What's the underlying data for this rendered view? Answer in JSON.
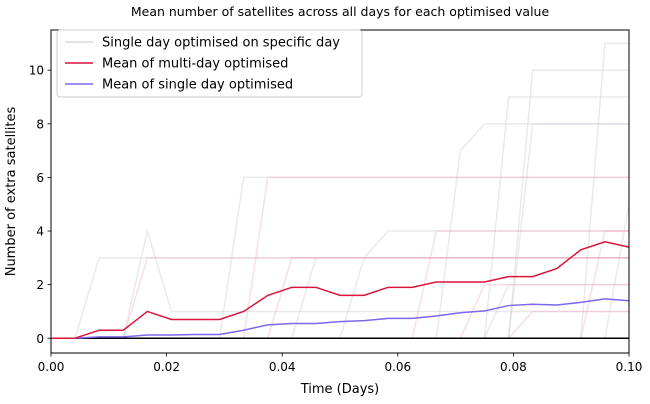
{
  "chart_data": {
    "type": "line",
    "title": "Mean number of satellites across all days for each optimised value",
    "xlabel": "Time (Days)",
    "ylabel": "Number of extra satellites",
    "xlim": [
      0.0,
      0.1
    ],
    "ylim": [
      -0.55,
      11.5
    ],
    "x_ticks": [
      0.0,
      0.02,
      0.04,
      0.06,
      0.08,
      0.1
    ],
    "x_tick_labels": [
      "0.00",
      "0.02",
      "0.04",
      "0.06",
      "0.08",
      "0.10"
    ],
    "y_ticks": [
      0,
      2,
      4,
      6,
      8,
      10
    ],
    "y_tick_labels": [
      "0",
      "2",
      "4",
      "6",
      "8",
      "10"
    ],
    "grid": false,
    "legend_position": "top-left",
    "colors": {
      "single_day": "#c8c8d2",
      "multi_day_mean": "#dc143c",
      "single_day_mean": "#7b68ee",
      "pink_faint": "#f4a6b6",
      "zero_line": "#000000"
    },
    "x": [
      0.0,
      0.004167,
      0.008333,
      0.0125,
      0.016667,
      0.020833,
      0.025,
      0.029167,
      0.033333,
      0.0375,
      0.041667,
      0.045833,
      0.05,
      0.054167,
      0.058333,
      0.0625,
      0.066667,
      0.070833,
      0.075,
      0.079167,
      0.083333,
      0.0875,
      0.091667,
      0.095833,
      0.1
    ],
    "series": [
      {
        "name": "Mean of multi-day optimised",
        "role": "mean_multi",
        "values": [
          0.0,
          0.0,
          0.3,
          0.3,
          1.0,
          0.7,
          0.7,
          0.7,
          1.0,
          1.6,
          1.9,
          1.9,
          1.6,
          1.6,
          1.9,
          1.9,
          2.1,
          2.1,
          2.1,
          2.3,
          2.3,
          2.6,
          3.3,
          3.6,
          3.4
        ]
      },
      {
        "name": "Mean of single day optimised",
        "role": "mean_single",
        "values": [
          0.0,
          0.0,
          0.05,
          0.05,
          0.12,
          0.12,
          0.14,
          0.14,
          0.3,
          0.5,
          0.55,
          0.55,
          0.62,
          0.66,
          0.74,
          0.74,
          0.83,
          0.95,
          1.02,
          1.22,
          1.27,
          1.24,
          1.34,
          1.47,
          1.4
        ]
      }
    ],
    "background_series": [
      {
        "name": "Single day optimised on specific day",
        "values": [
          0,
          0,
          0,
          0,
          0,
          0,
          0,
          0,
          0,
          0,
          0,
          0,
          0,
          0,
          0,
          0,
          0,
          0,
          0,
          0,
          0,
          0,
          0,
          0,
          0
        ]
      },
      {
        "values": [
          0,
          0,
          0,
          0,
          0,
          0,
          0,
          0,
          6,
          6,
          6,
          6,
          6,
          6,
          6,
          6,
          6,
          6,
          6,
          6,
          6,
          6,
          6,
          6,
          6
        ]
      },
      {
        "values": [
          0,
          0,
          0,
          0,
          0,
          0,
          0,
          0,
          0,
          0,
          0,
          0,
          0,
          3,
          3,
          3,
          3,
          3,
          3,
          3,
          3,
          3,
          3,
          3,
          3
        ]
      },
      {
        "values": [
          0,
          0,
          0,
          0,
          0,
          0,
          0,
          0,
          0,
          0,
          0,
          0,
          0,
          0,
          0,
          0,
          0,
          0,
          0,
          0,
          10,
          10,
          10,
          10,
          10
        ]
      },
      {
        "values": [
          0,
          0,
          3,
          3,
          3,
          3,
          3,
          3,
          3,
          3,
          3,
          3,
          3,
          3,
          3,
          3,
          3,
          3,
          3,
          3,
          3,
          3,
          3,
          3,
          3
        ]
      },
      {
        "values": [
          0,
          0,
          0,
          0,
          0,
          0,
          0,
          0,
          0,
          0,
          0,
          0,
          0,
          0,
          0,
          0,
          0,
          0,
          0,
          0,
          0,
          0,
          0,
          11,
          11
        ]
      },
      {
        "values": [
          0,
          0,
          0,
          0,
          0,
          0,
          0,
          0,
          0,
          0,
          0,
          0,
          0,
          0,
          0,
          0,
          0,
          0,
          0,
          0,
          8,
          8,
          8,
          8,
          8
        ]
      },
      {
        "values": [
          0,
          0,
          0,
          0,
          0,
          0,
          0,
          0,
          0,
          0,
          0,
          0,
          0,
          0,
          0,
          0,
          0,
          0,
          0,
          9,
          9,
          9,
          9,
          9,
          9
        ]
      },
      {
        "values": [
          0,
          0,
          0,
          0,
          0,
          0,
          0,
          0,
          0,
          0,
          0,
          0,
          0,
          0,
          0,
          0,
          0,
          7,
          8,
          8,
          8,
          8,
          8,
          8,
          8
        ]
      },
      {
        "values": [
          0,
          0,
          0,
          0,
          4,
          1,
          1,
          1,
          1,
          1,
          1,
          1,
          1,
          1,
          1,
          1,
          1,
          1,
          1,
          1,
          1,
          1,
          1,
          1,
          1
        ]
      },
      {
        "values": [
          0,
          0,
          0,
          0,
          0,
          0,
          0,
          0,
          0,
          0,
          0,
          3,
          3,
          3,
          4,
          4,
          4,
          4,
          4,
          4,
          4,
          4,
          4,
          4,
          4
        ]
      },
      {
        "values": [
          0,
          0,
          0,
          0,
          0,
          0,
          0,
          0,
          0,
          0,
          0,
          0,
          0,
          0,
          0,
          0,
          0,
          0,
          0,
          2,
          2,
          2,
          2,
          2,
          2
        ]
      },
      {
        "values": [
          0,
          0,
          0,
          0,
          0,
          0,
          0,
          0,
          0,
          0,
          0,
          0,
          0,
          0,
          0,
          0,
          0,
          0,
          0,
          0,
          0,
          0,
          0,
          0,
          5
        ]
      }
    ],
    "background_pink_series": [
      {
        "values": [
          0,
          0,
          0,
          0,
          3,
          3,
          3,
          3,
          3,
          3,
          3,
          3,
          3,
          3,
          3,
          3,
          3,
          3,
          3,
          3,
          3,
          3,
          3,
          3,
          3
        ]
      },
      {
        "values": [
          0,
          0,
          0,
          0,
          0,
          0,
          0,
          0,
          0,
          0,
          0,
          0,
          0,
          0,
          0,
          0,
          4,
          4,
          4,
          4,
          4,
          4,
          4,
          4,
          4
        ]
      },
      {
        "values": [
          0,
          0,
          0,
          0,
          0,
          0,
          0,
          0,
          0,
          6,
          6,
          6,
          6,
          6,
          6,
          6,
          6,
          6,
          6,
          6,
          6,
          6,
          6,
          6,
          6
        ]
      },
      {
        "values": [
          0,
          0,
          0,
          0,
          0,
          0,
          0,
          0,
          0,
          0,
          0,
          0,
          0,
          0,
          0,
          0,
          0,
          0,
          0,
          0,
          0,
          0,
          0,
          4,
          4
        ]
      },
      {
        "values": [
          0,
          0,
          0,
          0,
          0,
          0,
          0,
          0,
          0,
          0,
          0,
          0,
          0,
          0,
          0,
          0,
          0,
          0,
          2,
          2,
          2,
          2,
          2,
          2,
          2
        ]
      },
      {
        "values": [
          0,
          0,
          0,
          0,
          0,
          0,
          0,
          0,
          0,
          0,
          3,
          3,
          3,
          3,
          3,
          3,
          3,
          3,
          3,
          3,
          3,
          3,
          3,
          3,
          3
        ]
      },
      {
        "values": [
          0,
          0,
          0,
          0,
          0,
          0,
          0,
          0,
          0,
          0,
          0,
          0,
          0,
          0,
          0,
          0,
          0,
          0,
          0,
          0,
          1,
          1,
          1,
          1,
          1
        ]
      }
    ]
  }
}
